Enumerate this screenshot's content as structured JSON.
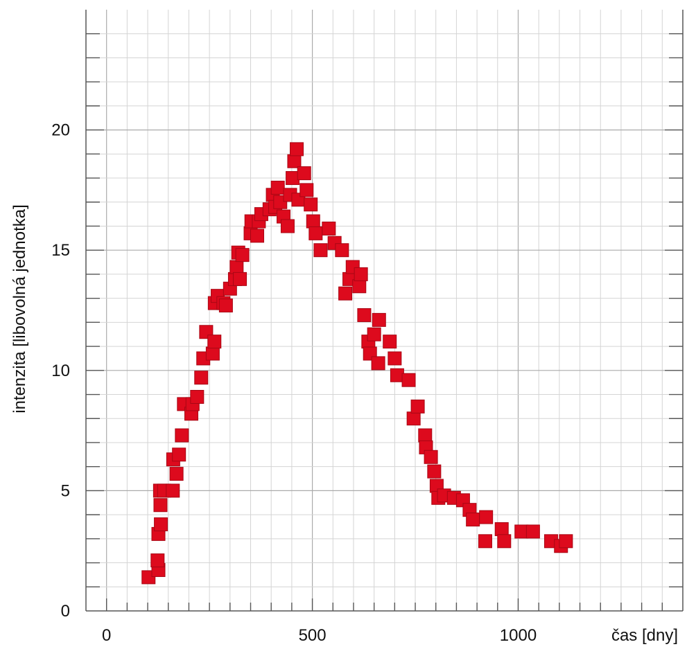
{
  "chart_data": {
    "type": "scatter",
    "title": "",
    "xlabel": "čas [dny]",
    "ylabel": "intenzita [libovolná jednotka]",
    "xlim": [
      -50,
      1400
    ],
    "ylim": [
      0,
      25
    ],
    "x_ticks": [
      0,
      500,
      1000
    ],
    "x_tick_labels": [
      "0",
      "500",
      "1000"
    ],
    "y_ticks": [
      0,
      5,
      10,
      15,
      20
    ],
    "y_tick_labels": [
      "0",
      "5",
      "10",
      "15",
      "20"
    ],
    "grid": true,
    "legend": "none",
    "marker": "square",
    "marker_color": "#dd0a1d",
    "series": [
      {
        "x": [
          102,
          126,
          124,
          126,
          132,
          131,
          130,
          140,
          161,
          162,
          170,
          176,
          183,
          188,
          206,
          209,
          220,
          230,
          235,
          242,
          258,
          262,
          263,
          270,
          284,
          290,
          300,
          312,
          316,
          320,
          324,
          330,
          350,
          352,
          366,
          370,
          376,
          396,
          404,
          410,
          416,
          422,
          430,
          440,
          446,
          452,
          456,
          462,
          466,
          480,
          486,
          496,
          502,
          508,
          520,
          540,
          554,
          572,
          580,
          590,
          598,
          614,
          618,
          626,
          636,
          640,
          650,
          660,
          662,
          688,
          700,
          706,
          734,
          746,
          756,
          774,
          776,
          788,
          796,
          802,
          806,
          820,
          844,
          866,
          882,
          890,
          920,
          922,
          960,
          966,
          1008,
          1036,
          1080,
          1104,
          1116
        ],
        "y": [
          1.4,
          1.7,
          2.1,
          3.2,
          3.6,
          4.4,
          5.0,
          5.0,
          5.0,
          6.3,
          5.7,
          6.5,
          7.3,
          8.6,
          8.2,
          8.6,
          8.9,
          9.7,
          10.5,
          11.6,
          10.7,
          11.2,
          12.8,
          13.1,
          12.8,
          12.7,
          13.4,
          13.8,
          14.3,
          14.9,
          13.8,
          14.8,
          15.7,
          16.2,
          15.6,
          16.2,
          16.5,
          16.7,
          17.3,
          16.8,
          17.6,
          17.0,
          16.4,
          16.0,
          17.3,
          18.0,
          18.7,
          19.2,
          17.1,
          18.2,
          17.5,
          16.9,
          16.2,
          15.7,
          15.0,
          15.9,
          15.3,
          15.0,
          13.2,
          13.8,
          14.3,
          13.5,
          14.0,
          12.3,
          11.2,
          10.7,
          11.5,
          10.3,
          12.1,
          11.2,
          10.5,
          9.8,
          9.6,
          8.0,
          8.5,
          7.3,
          6.8,
          6.4,
          5.8,
          5.2,
          4.7,
          4.8,
          4.7,
          4.6,
          4.2,
          3.8,
          2.9,
          3.9,
          3.4,
          2.9,
          3.3,
          3.3,
          2.9,
          2.7,
          2.9
        ]
      }
    ]
  }
}
